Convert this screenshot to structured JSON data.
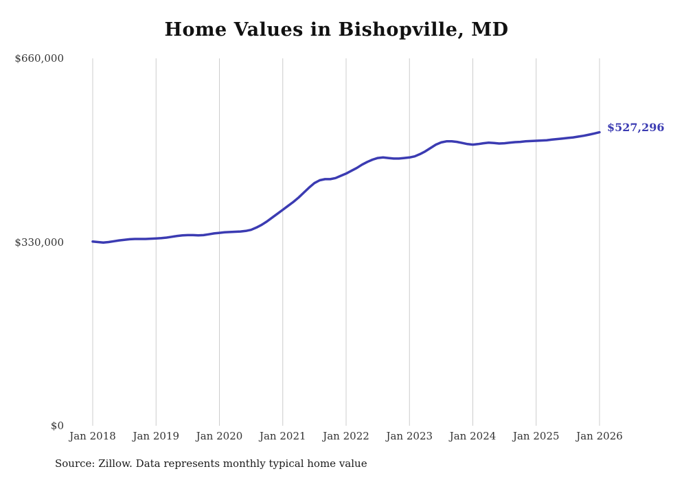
{
  "chart_data": {
    "type": "line",
    "title": "Home Values in Bishopville, MD",
    "xlabel": "",
    "ylabel": "",
    "ylim": [
      0,
      660000
    ],
    "grid": "vertical-only",
    "legend": "none",
    "end_label": "$527,296",
    "source": "Source: Zillow. Data represents monthly typical home value",
    "line_color": "#3b3bb2",
    "grid_color": "#cccccc",
    "y_ticks": [
      {
        "value": 0,
        "label": "$0"
      },
      {
        "value": 330000,
        "label": "$330,000"
      },
      {
        "value": 660000,
        "label": "$660,000"
      }
    ],
    "x_ticks": [
      "Jan 2018",
      "Jan 2019",
      "Jan 2020",
      "Jan 2021",
      "Jan 2022",
      "Jan 2023",
      "Jan 2024",
      "Jan 2025",
      "Jan 2026"
    ],
    "x_start_month": "2018-01",
    "x_end_month": "2026-01",
    "values_monthly_usd": [
      331000,
      330000,
      329000,
      330000,
      331500,
      333000,
      334000,
      335000,
      335500,
      335500,
      335500,
      336000,
      336500,
      337000,
      338000,
      339500,
      341000,
      342000,
      342500,
      342500,
      342000,
      342500,
      344000,
      345500,
      346500,
      347500,
      348000,
      348500,
      349000,
      350000,
      352000,
      356000,
      361000,
      367000,
      374000,
      381000,
      388000,
      395000,
      402000,
      410000,
      419000,
      428000,
      436000,
      441000,
      443000,
      443000,
      445000,
      449000,
      453000,
      458000,
      463000,
      469000,
      474000,
      478000,
      481000,
      482000,
      481000,
      480000,
      480000,
      481000,
      482000,
      484000,
      488000,
      493000,
      499000,
      505000,
      509000,
      511000,
      511000,
      510000,
      508000,
      506000,
      505000,
      506000,
      507500,
      508500,
      508000,
      507000,
      507500,
      508500,
      509500,
      510000,
      511000,
      511500,
      512000,
      512500,
      513000,
      514000,
      515000,
      516000,
      517000,
      518000,
      519500,
      521000,
      523000,
      525000,
      527296
    ]
  }
}
